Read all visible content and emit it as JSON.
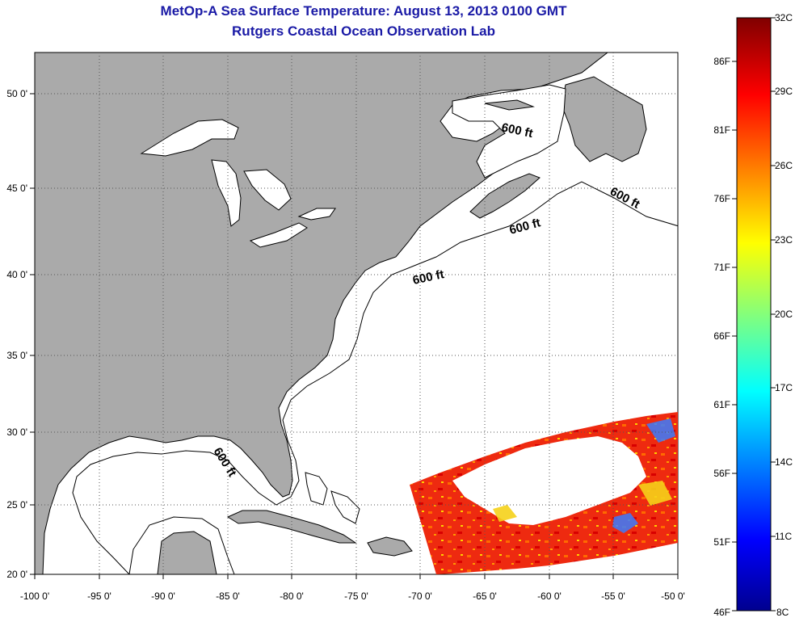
{
  "title": "MetOp-A Sea Surface Temperature:  August 13, 2013 0100 GMT",
  "subtitle": "Rutgers Coastal Ocean Observation Lab",
  "map": {
    "lon_range": [
      -100,
      -50
    ],
    "lat_range": [
      20,
      52.5
    ],
    "x_ticks": [
      "-100 0'",
      "-95 0'",
      "-90 0'",
      "-85 0'",
      "-80 0'",
      "-75 0'",
      "-70 0'",
      "-65 0'",
      "-60 0'",
      "-55 0'",
      "-50 0'"
    ],
    "y_ticks": [
      "20 0'",
      "25 0'",
      "30 0'",
      "35 0'",
      "40 0'",
      "45 0'",
      "50 0'"
    ],
    "land_color": "#aaaaaa",
    "grid": "dotted",
    "contour_labels": [
      "600 ft",
      "600 ft",
      "600 ft",
      "600 ft",
      "600 ft"
    ]
  },
  "colorbar": {
    "celsius_labels": [
      "32C",
      "29C",
      "26C",
      "23C",
      "20C",
      "17C",
      "14C",
      "11C",
      "8C"
    ],
    "fahrenheit_labels": [
      "86F",
      "81F",
      "76F",
      "71F",
      "66F",
      "61F",
      "56F",
      "51F",
      "46F"
    ],
    "min_c": 8,
    "max_c": 32
  }
}
